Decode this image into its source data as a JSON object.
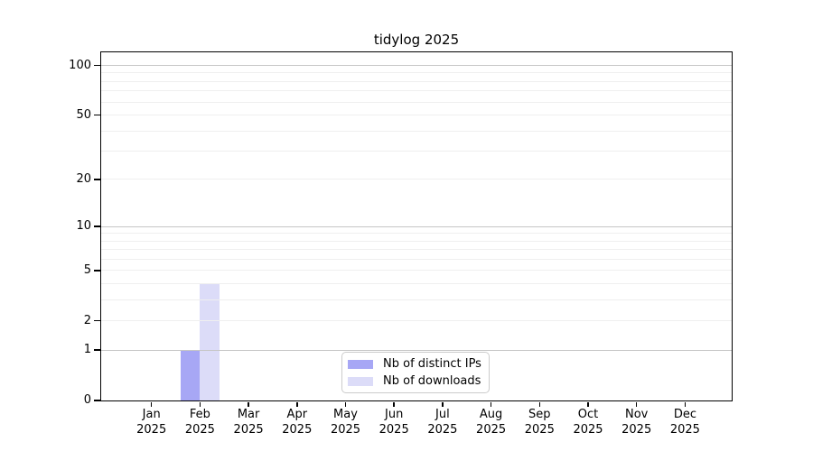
{
  "chart_data": {
    "type": "bar",
    "title": "tidylog 2025",
    "categories": [
      "Jan 2025",
      "Feb 2025",
      "Mar 2025",
      "Apr 2025",
      "May 2025",
      "Jun 2025",
      "Jul 2025",
      "Aug 2025",
      "Sep 2025",
      "Oct 2025",
      "Nov 2025",
      "Dec 2025"
    ],
    "series": [
      {
        "name": "Nb of distinct IPs",
        "color": "#a7a7f5",
        "values": [
          0,
          1,
          0,
          0,
          0,
          0,
          0,
          0,
          0,
          0,
          0,
          0
        ]
      },
      {
        "name": "Nb of downloads",
        "color": "#dcdcf8",
        "values": [
          0,
          4,
          0,
          0,
          0,
          0,
          0,
          0,
          0,
          0,
          0,
          0
        ]
      }
    ],
    "xlabel": "",
    "ylabel": "",
    "y_scale": "log1p",
    "y_ticks": [
      0,
      1,
      2,
      5,
      10,
      20,
      50,
      100
    ],
    "ylim": [
      0,
      120
    ],
    "grid": true,
    "gridlines_major": [
      1,
      10,
      100
    ],
    "gridlines_minor": [
      2,
      3,
      4,
      5,
      6,
      7,
      8,
      9,
      20,
      30,
      40,
      50,
      60,
      70,
      80,
      90
    ],
    "legend_position": "lower-center-inside"
  },
  "colors": {
    "bar_distinct_ips": "#a7a7f5",
    "bar_downloads": "#dcdcf8",
    "grid_major": "#c6c6c6",
    "grid_minor": "#efefef",
    "axis": "#000000",
    "legend_border": "#cccccc",
    "background": "#ffffff",
    "text": "#000000"
  }
}
